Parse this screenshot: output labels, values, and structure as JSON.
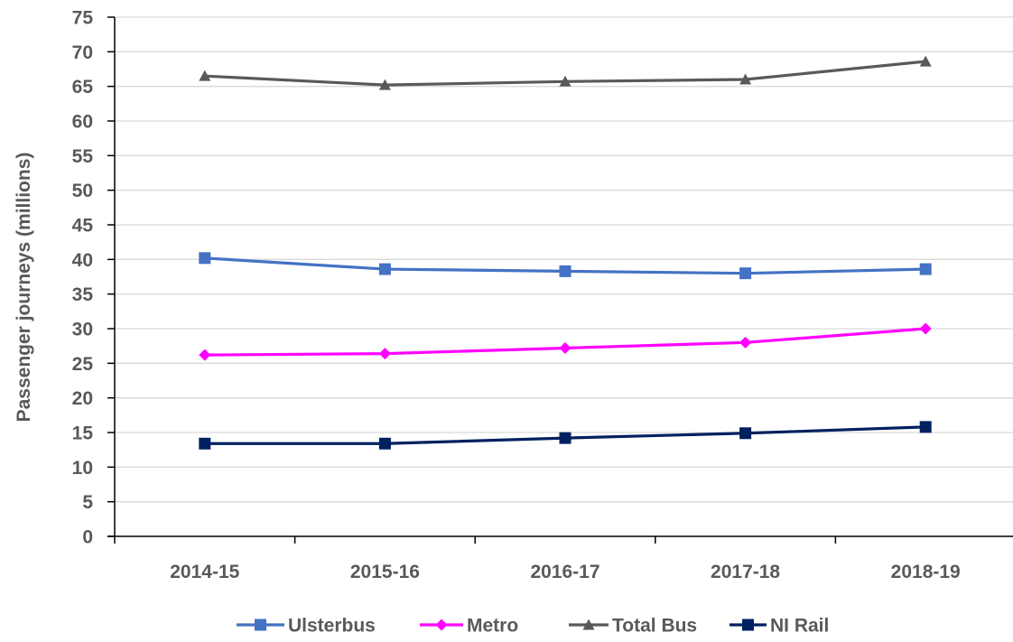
{
  "chart_data": {
    "type": "line",
    "title": "",
    "xlabel": "",
    "ylabel": "Passenger journeys (millions)",
    "categories": [
      "2014-15",
      "2015-16",
      "2016-17",
      "2017-18",
      "2018-19"
    ],
    "ylim": [
      0,
      75
    ],
    "yticks": [
      0,
      5,
      10,
      15,
      20,
      25,
      30,
      35,
      40,
      45,
      50,
      55,
      60,
      65,
      70,
      75
    ],
    "grid": true,
    "legend": "bottom",
    "series": [
      {
        "name": "Ulsterbus",
        "values": [
          40.2,
          38.6,
          38.3,
          38.0,
          38.6
        ],
        "color": "#4472C4",
        "marker": "square"
      },
      {
        "name": "Metro",
        "values": [
          26.2,
          26.4,
          27.2,
          28.0,
          30.0
        ],
        "color": "#FF00FF",
        "marker": "diamond"
      },
      {
        "name": "Total Bus",
        "values": [
          66.5,
          65.2,
          65.7,
          66.0,
          68.6
        ],
        "color": "#595959",
        "marker": "triangle"
      },
      {
        "name": "NI Rail",
        "values": [
          13.4,
          13.4,
          14.2,
          14.9,
          15.8
        ],
        "color": "#002060",
        "marker": "square"
      }
    ]
  }
}
